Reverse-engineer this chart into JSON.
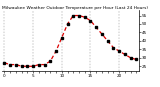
{
  "title": "Milwaukee Weather Outdoor Temperature per Hour (Last 24 Hours)",
  "hours": [
    0,
    1,
    2,
    3,
    4,
    5,
    6,
    7,
    8,
    9,
    10,
    11,
    12,
    13,
    14,
    15,
    16,
    17,
    18,
    19,
    20,
    21,
    22,
    23
  ],
  "temps": [
    27,
    26,
    26,
    25,
    25,
    25,
    26,
    26,
    28,
    34,
    42,
    50,
    55,
    55,
    54,
    52,
    48,
    44,
    40,
    36,
    34,
    32,
    30,
    29
  ],
  "line_color": "#dd0000",
  "marker_color": "#000000",
  "bg_color": "#ffffff",
  "plot_bg": "#ffffff",
  "grid_color": "#888888",
  "ylim": [
    22,
    58
  ],
  "yticks": [
    25,
    30,
    35,
    40,
    45,
    50,
    55
  ],
  "ytick_labels": [
    "25",
    "30",
    "35",
    "40",
    "45",
    "50",
    "55"
  ],
  "vgrid_positions": [
    0,
    5,
    10,
    15,
    20
  ],
  "title_fontsize": 3.2,
  "tick_fontsize": 3.0,
  "line_width": 0.9,
  "marker_size": 1.5
}
